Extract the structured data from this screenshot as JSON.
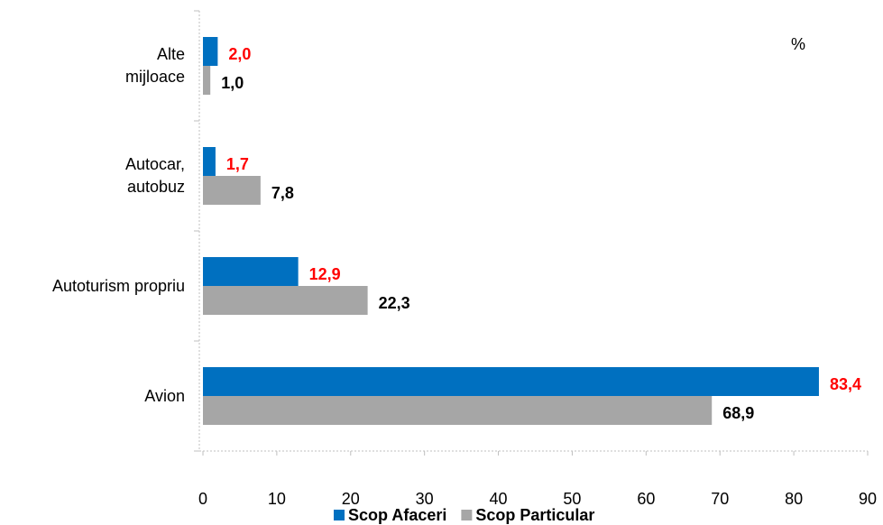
{
  "chart_data": {
    "type": "bar",
    "orientation": "horizontal",
    "categories": [
      "Alte\nmijloace",
      "Autocar,\nautobuz",
      "Autoturism propriu",
      "Avion"
    ],
    "series": [
      {
        "name": "Scop Afaceri",
        "color": "#0070c0",
        "label_color": "#ff0000",
        "values": [
          2.0,
          1.7,
          12.9,
          83.4
        ],
        "value_labels": [
          "2,0",
          "1,7",
          "12,9",
          "83,4"
        ]
      },
      {
        "name": "Scop Particular",
        "color": "#a6a6a6",
        "label_color": "#000000",
        "values": [
          1.0,
          7.8,
          22.3,
          68.9
        ],
        "value_labels": [
          "1,0",
          "7,8",
          "22,3",
          "68,9"
        ]
      }
    ],
    "annotation": "%",
    "xlim": [
      0,
      90
    ],
    "xticks": [
      0,
      10,
      20,
      30,
      40,
      50,
      60,
      70,
      80,
      90
    ],
    "grid": false,
    "legend": "bottom"
  }
}
